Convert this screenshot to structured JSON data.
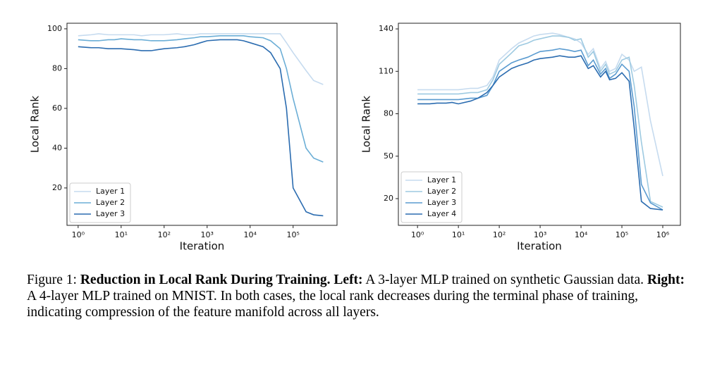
{
  "chart_data": [
    {
      "type": "line",
      "xlabel": "Iteration",
      "ylabel": "Local Rank",
      "log_x": true,
      "legend": "lower left",
      "x": [
        1,
        2,
        3,
        5,
        7,
        10,
        20,
        30,
        50,
        70,
        100,
        200,
        300,
        500,
        700,
        1000,
        2000,
        3000,
        5000,
        7000,
        10000,
        20000,
        30000,
        50000,
        70000,
        100000,
        200000,
        300000,
        500000
      ],
      "series": [
        {
          "name": "Layer 1",
          "color": "#c6dbef",
          "values": [
            96.5,
            97,
            97.5,
            97,
            97,
            97,
            97,
            96.5,
            97,
            97,
            97,
            97.5,
            97,
            97,
            97.5,
            97.5,
            97.5,
            97.5,
            97.5,
            97.5,
            97.5,
            97.5,
            97.5,
            97.5,
            93,
            88,
            79,
            74,
            72
          ]
        },
        {
          "name": "Layer 2",
          "color": "#6baed6",
          "values": [
            94.5,
            94,
            94,
            94.5,
            94.5,
            95,
            94.5,
            94.5,
            94,
            94,
            94,
            94.5,
            95,
            95.5,
            96,
            96,
            96.5,
            96.5,
            96.5,
            96.5,
            96,
            95.5,
            94,
            90,
            80,
            65,
            40,
            35,
            33
          ]
        },
        {
          "name": "Layer 3",
          "color": "#2b6cb0",
          "values": [
            91,
            90.5,
            90.5,
            90,
            90,
            90,
            89.5,
            89,
            89,
            89.5,
            90,
            90.5,
            91,
            92,
            93,
            94,
            94.5,
            94.5,
            94.5,
            94,
            93,
            91,
            88,
            80,
            60,
            20,
            8,
            6.5,
            6
          ]
        }
      ],
      "xlim": [
        0.55,
        1050000
      ],
      "ylim": [
        1.2,
        102.8
      ],
      "xticks": [
        {
          "value": 1,
          "label": "10⁰"
        },
        {
          "value": 10,
          "label": "10¹"
        },
        {
          "value": 100,
          "label": "10²"
        },
        {
          "value": 1000,
          "label": "10³"
        },
        {
          "value": 10000,
          "label": "10⁴"
        },
        {
          "value": 100000,
          "label": "10⁵"
        }
      ],
      "yticks": [
        20,
        40,
        60,
        80,
        100
      ]
    },
    {
      "type": "line",
      "xlabel": "Iteration",
      "ylabel": "Local Rank",
      "log_x": true,
      "legend": "lower left",
      "x": [
        1,
        2,
        3,
        5,
        7,
        10,
        20,
        30,
        50,
        70,
        100,
        200,
        300,
        500,
        700,
        1000,
        2000,
        3000,
        5000,
        7000,
        10000,
        15000,
        20000,
        30000,
        40000,
        50000,
        70000,
        100000,
        150000,
        200000,
        300000,
        500000,
        1000000
      ],
      "series": [
        {
          "name": "Layer 1",
          "color": "#c6dbef",
          "values": [
            97,
            97,
            97,
            97,
            97,
            97,
            98,
            98,
            100,
            106,
            118,
            126,
            130,
            133,
            135,
            136,
            137,
            136,
            134,
            133,
            130,
            122,
            126,
            112,
            117,
            110,
            112,
            122,
            118,
            110,
            113,
            75,
            36
          ]
        },
        {
          "name": "Layer 2",
          "color": "#9ecae1",
          "values": [
            94,
            94,
            94,
            94,
            94,
            94,
            95,
            95,
            97,
            104,
            115,
            123,
            128,
            130,
            132,
            133,
            135,
            135,
            134,
            132,
            133,
            120,
            124,
            110,
            115,
            108,
            110,
            118,
            120,
            100,
            60,
            18,
            14
          ]
        },
        {
          "name": "Layer 3",
          "color": "#5a9bd0",
          "values": [
            90,
            90,
            90,
            90,
            90,
            90,
            91,
            91,
            93,
            100,
            110,
            116,
            118,
            120,
            122,
            124,
            125,
            126,
            125,
            124,
            125,
            114,
            118,
            108,
            112,
            105,
            108,
            115,
            110,
            85,
            30,
            17,
            12
          ]
        },
        {
          "name": "Layer 4",
          "color": "#2b6cb0",
          "values": [
            87,
            87,
            87.5,
            87.5,
            88,
            87,
            89,
            91,
            95,
            100,
            106,
            112,
            114,
            116,
            118,
            119,
            120,
            121,
            120,
            120,
            121,
            112,
            114,
            106,
            110,
            104,
            105,
            109,
            103,
            70,
            18,
            13,
            12
          ]
        }
      ],
      "xlim": [
        0.34,
        2700000
      ],
      "ylim": [
        1.1,
        144
      ],
      "xticks": [
        {
          "value": 1,
          "label": "10⁰"
        },
        {
          "value": 10,
          "label": "10¹"
        },
        {
          "value": 100,
          "label": "10²"
        },
        {
          "value": 1000,
          "label": "10³"
        },
        {
          "value": 10000,
          "label": "10⁴"
        },
        {
          "value": 100000,
          "label": "10⁵"
        },
        {
          "value": 1000000,
          "label": "10⁶"
        }
      ],
      "yticks": [
        20,
        50,
        80,
        110,
        140
      ]
    }
  ],
  "caption": {
    "label": "Figure 1:",
    "title": "Reduction in Local Rank During Training.",
    "left_label": "Left:",
    "left_text": "A 3-layer MLP trained on synthetic Gaussian data.",
    "right_label": "Right:",
    "right_text": "A 4-layer MLP trained on MNIST. In both cases, the local rank decreases during the terminal phase of training, indicating compression of the feature manifold across all layers."
  }
}
